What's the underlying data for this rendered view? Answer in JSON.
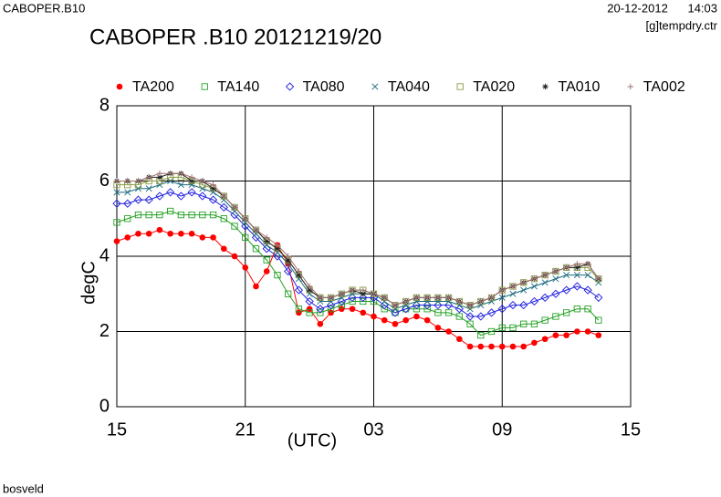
{
  "header": {
    "left": "CABOPER.B10",
    "right": "20-12-2012      14:03",
    "file": "[g]tempdry.ctr",
    "footer": "bosveld"
  },
  "chart_data": {
    "type": "line",
    "title": "CABOPER .B10 20121219/20",
    "y_label": "degC",
    "x_label": "(UTC)",
    "xlim": [
      0,
      24
    ],
    "ylim": [
      0,
      8
    ],
    "xticks": [
      {
        "value": 0,
        "label": "15"
      },
      {
        "value": 6,
        "label": "21"
      },
      {
        "value": 12,
        "label": "03"
      },
      {
        "value": 18,
        "label": "09"
      },
      {
        "value": 24,
        "label": "15"
      }
    ],
    "yticks": [
      0,
      2,
      4,
      6,
      8
    ],
    "grid": true,
    "x": [
      0,
      0.5,
      1,
      1.5,
      2,
      2.5,
      3,
      3.5,
      4,
      4.5,
      5,
      5.5,
      6,
      6.5,
      7,
      7.5,
      8,
      8.5,
      9,
      9.5,
      10,
      10.5,
      11,
      11.5,
      12,
      12.5,
      13,
      13.5,
      14,
      14.5,
      15,
      15.5,
      16,
      16.5,
      17,
      17.5,
      18,
      18.5,
      19,
      19.5,
      20,
      20.5,
      21,
      21.5,
      22,
      22.5
    ],
    "series": [
      {
        "name": "TA200",
        "color": "#ff0000",
        "marker": "dot",
        "values": [
          4.4,
          4.5,
          4.6,
          4.6,
          4.7,
          4.6,
          4.6,
          4.6,
          4.5,
          4.5,
          4.2,
          4.0,
          3.7,
          3.2,
          3.6,
          4.3,
          3.8,
          2.5,
          2.6,
          2.2,
          2.5,
          2.6,
          2.6,
          2.5,
          2.4,
          2.3,
          2.2,
          2.3,
          2.4,
          2.3,
          2.1,
          2.0,
          1.8,
          1.6,
          1.6,
          1.6,
          1.6,
          1.6,
          1.6,
          1.7,
          1.8,
          1.9,
          1.9,
          2.0,
          2.0,
          1.9
        ]
      },
      {
        "name": "TA140",
        "color": "#22a022",
        "marker": "square",
        "values": [
          4.9,
          5.0,
          5.1,
          5.1,
          5.1,
          5.2,
          5.1,
          5.1,
          5.1,
          5.1,
          5.0,
          4.8,
          4.5,
          4.2,
          3.9,
          3.5,
          3.0,
          2.6,
          2.5,
          2.5,
          2.6,
          2.7,
          2.8,
          2.8,
          2.8,
          2.6,
          2.5,
          2.6,
          2.6,
          2.6,
          2.5,
          2.5,
          2.4,
          2.2,
          1.9,
          2.0,
          2.1,
          2.1,
          2.2,
          2.2,
          2.3,
          2.4,
          2.5,
          2.6,
          2.6,
          2.3
        ]
      },
      {
        "name": "TA080",
        "color": "#2020e0",
        "marker": "diamond",
        "values": [
          5.4,
          5.4,
          5.5,
          5.5,
          5.6,
          5.7,
          5.6,
          5.7,
          5.6,
          5.5,
          5.3,
          5.1,
          4.8,
          4.5,
          4.2,
          4.0,
          3.6,
          3.1,
          2.8,
          2.6,
          2.7,
          2.8,
          2.9,
          2.9,
          2.9,
          2.7,
          2.5,
          2.6,
          2.7,
          2.7,
          2.7,
          2.7,
          2.6,
          2.4,
          2.4,
          2.5,
          2.6,
          2.7,
          2.7,
          2.8,
          2.9,
          3.0,
          3.1,
          3.2,
          3.1,
          2.9
        ]
      },
      {
        "name": "TA040",
        "color": "#1a6a80",
        "marker": "cross",
        "values": [
          5.7,
          5.7,
          5.8,
          5.8,
          5.9,
          6.0,
          5.9,
          5.9,
          5.8,
          5.7,
          5.5,
          5.2,
          4.9,
          4.6,
          4.3,
          4.1,
          3.8,
          3.4,
          3.0,
          2.8,
          2.8,
          2.9,
          3.0,
          3.0,
          3.0,
          2.8,
          2.6,
          2.7,
          2.8,
          2.8,
          2.8,
          2.8,
          2.7,
          2.6,
          2.7,
          2.8,
          2.9,
          3.0,
          3.1,
          3.2,
          3.3,
          3.4,
          3.5,
          3.5,
          3.5,
          3.3
        ]
      },
      {
        "name": "TA020",
        "color": "#8a9a40",
        "marker": "square",
        "values": [
          5.9,
          5.9,
          5.9,
          6.0,
          6.0,
          6.1,
          6.1,
          6.0,
          5.9,
          5.8,
          5.6,
          5.3,
          5.0,
          4.7,
          4.4,
          4.2,
          3.9,
          3.5,
          3.1,
          2.9,
          2.9,
          3.0,
          3.1,
          3.1,
          3.0,
          2.9,
          2.7,
          2.8,
          2.9,
          2.9,
          2.9,
          2.9,
          2.8,
          2.7,
          2.8,
          2.9,
          3.1,
          3.2,
          3.3,
          3.4,
          3.5,
          3.6,
          3.7,
          3.7,
          3.7,
          3.4
        ]
      },
      {
        "name": "TA010",
        "color": "#202020",
        "marker": "star",
        "values": [
          6.0,
          6.0,
          6.0,
          6.1,
          6.1,
          6.2,
          6.2,
          6.0,
          6.0,
          5.8,
          5.6,
          5.3,
          5.0,
          4.7,
          4.4,
          4.2,
          3.9,
          3.5,
          3.1,
          2.9,
          2.9,
          3.0,
          3.1,
          3.0,
          3.0,
          2.9,
          2.7,
          2.8,
          2.9,
          2.9,
          2.9,
          2.9,
          2.8,
          2.7,
          2.8,
          2.9,
          3.1,
          3.2,
          3.3,
          3.4,
          3.5,
          3.6,
          3.7,
          3.7,
          3.8,
          3.4
        ]
      },
      {
        "name": "TA002",
        "color": "#a07070",
        "marker": "plus",
        "values": [
          6.0,
          6.0,
          6.0,
          6.1,
          6.2,
          6.2,
          6.2,
          6.1,
          6.0,
          5.9,
          5.6,
          5.3,
          5.0,
          4.7,
          4.5,
          4.3,
          4.0,
          3.6,
          3.2,
          2.9,
          2.9,
          3.0,
          3.1,
          3.1,
          3.0,
          2.9,
          2.7,
          2.8,
          2.9,
          2.9,
          2.9,
          2.9,
          2.8,
          2.7,
          2.8,
          2.9,
          3.1,
          3.2,
          3.3,
          3.4,
          3.5,
          3.6,
          3.7,
          3.8,
          3.8,
          3.4
        ]
      }
    ]
  }
}
